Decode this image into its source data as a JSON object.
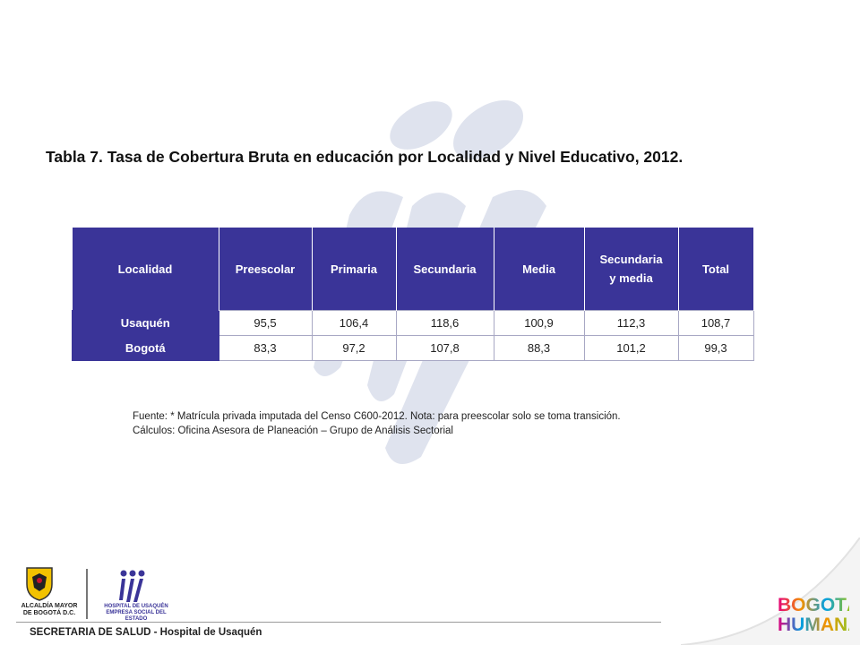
{
  "title": "Tabla 7. Tasa de Cobertura Bruta en educación por Localidad y Nivel Educativo, 2012.",
  "table": {
    "headers": [
      "Localidad",
      "Preescolar",
      "Primaria",
      "Secundaria",
      "Media",
      "Secundaria y media",
      "Total"
    ],
    "rows": [
      {
        "name": "Usaquén",
        "values": [
          "95,5",
          "106,4",
          "118,6",
          "100,9",
          "112,3",
          "108,7"
        ]
      },
      {
        "name": "Bogotá",
        "values": [
          "83,3",
          "97,2",
          "107,8",
          "88,3",
          "101,2",
          "99,3"
        ]
      }
    ]
  },
  "source": {
    "line1": "Fuente: * Matrícula privada imputada del Censo C600-2012. Nota: para preescolar solo se toma transición.",
    "line2": "Cálculos: Oficina Asesora de Planeación – Grupo de Análisis Sectorial"
  },
  "footer": {
    "text": "SECRETARIA DE SALUD - Hospital de Usaquén",
    "crest_label": "ALCALDÍA MAYOR DE BOGOTÁ D.C.",
    "hospital_label": "HOSPITAL DE USAQUÉN EMPRESA SOCIAL DEL ESTADO",
    "brand_line1": "BOGOTÁ",
    "brand_line2": "HUMANA"
  },
  "colors": {
    "header_bg": "#3a3498",
    "watermark": "#dfe3ee"
  }
}
